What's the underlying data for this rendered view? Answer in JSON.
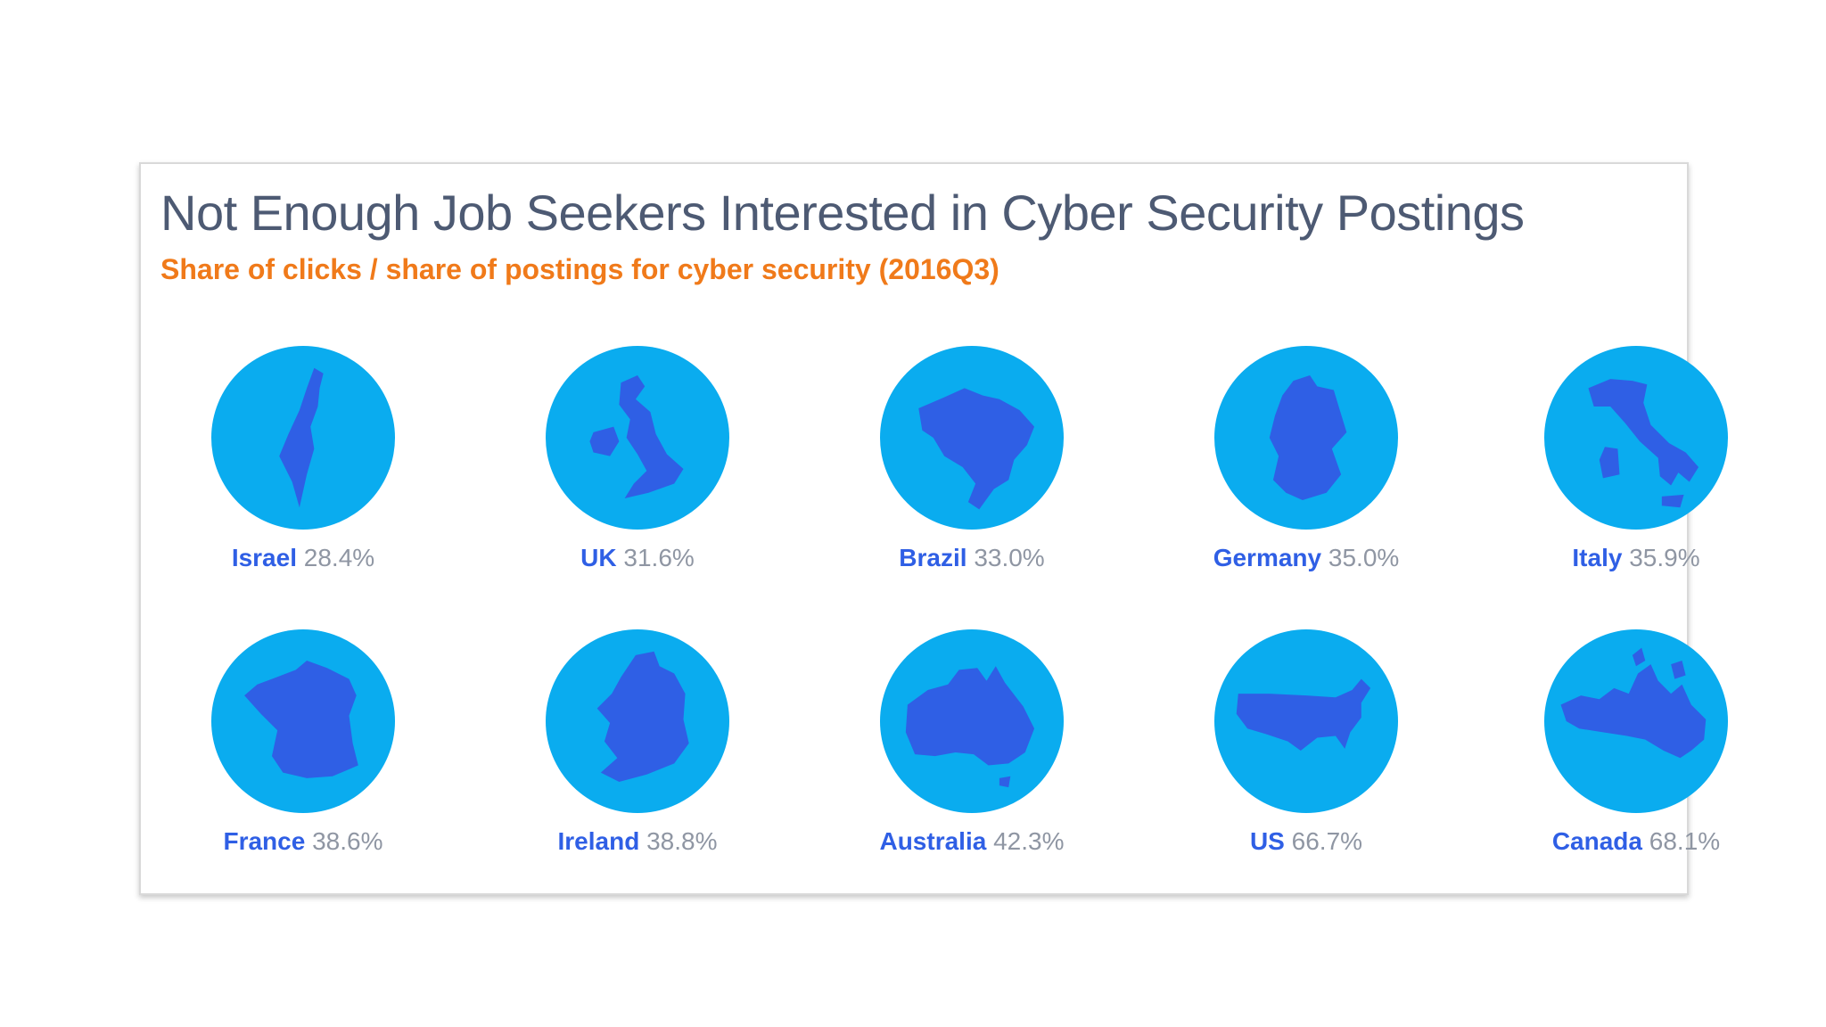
{
  "title": "Not Enough Job Seekers Interested in Cyber Security Postings",
  "subtitle": "Share of clicks / share of postings for cyber security (2016Q3)",
  "colors": {
    "title": "#4d5a73",
    "subtitle": "#f07a1a",
    "globe": "#0aacef",
    "country_shape": "#2f5fe5",
    "country_label": "#2f5fe5",
    "value_label": "#8f96a3"
  },
  "chart_data": {
    "type": "table",
    "title": "Not Enough Job Seekers Interested in Cyber Security Postings",
    "subtitle": "Share of clicks / share of postings for cyber security (2016Q3)",
    "categories": [
      "Israel",
      "UK",
      "Brazil",
      "Germany",
      "Italy",
      "France",
      "Ireland",
      "Australia",
      "US",
      "Canada"
    ],
    "values": [
      28.4,
      31.6,
      33.0,
      35.0,
      35.9,
      38.6,
      38.8,
      42.3,
      66.7,
      68.1
    ],
    "items": [
      {
        "country": "Israel",
        "value": "28.4%",
        "icon": "israel-map-icon"
      },
      {
        "country": "UK",
        "value": "31.6%",
        "icon": "uk-map-icon"
      },
      {
        "country": "Brazil",
        "value": "33.0%",
        "icon": "brazil-map-icon"
      },
      {
        "country": "Germany",
        "value": "35.0%",
        "icon": "germany-map-icon"
      },
      {
        "country": "Italy",
        "value": "35.9%",
        "icon": "italy-map-icon"
      },
      {
        "country": "France",
        "value": "38.6%",
        "icon": "france-map-icon"
      },
      {
        "country": "Ireland",
        "value": "38.8%",
        "icon": "ireland-map-icon"
      },
      {
        "country": "Australia",
        "value": "42.3%",
        "icon": "australia-map-icon"
      },
      {
        "country": "US",
        "value": "66.7%",
        "icon": "us-map-icon"
      },
      {
        "country": "Canada",
        "value": "68.1%",
        "icon": "canada-map-icon"
      }
    ]
  }
}
